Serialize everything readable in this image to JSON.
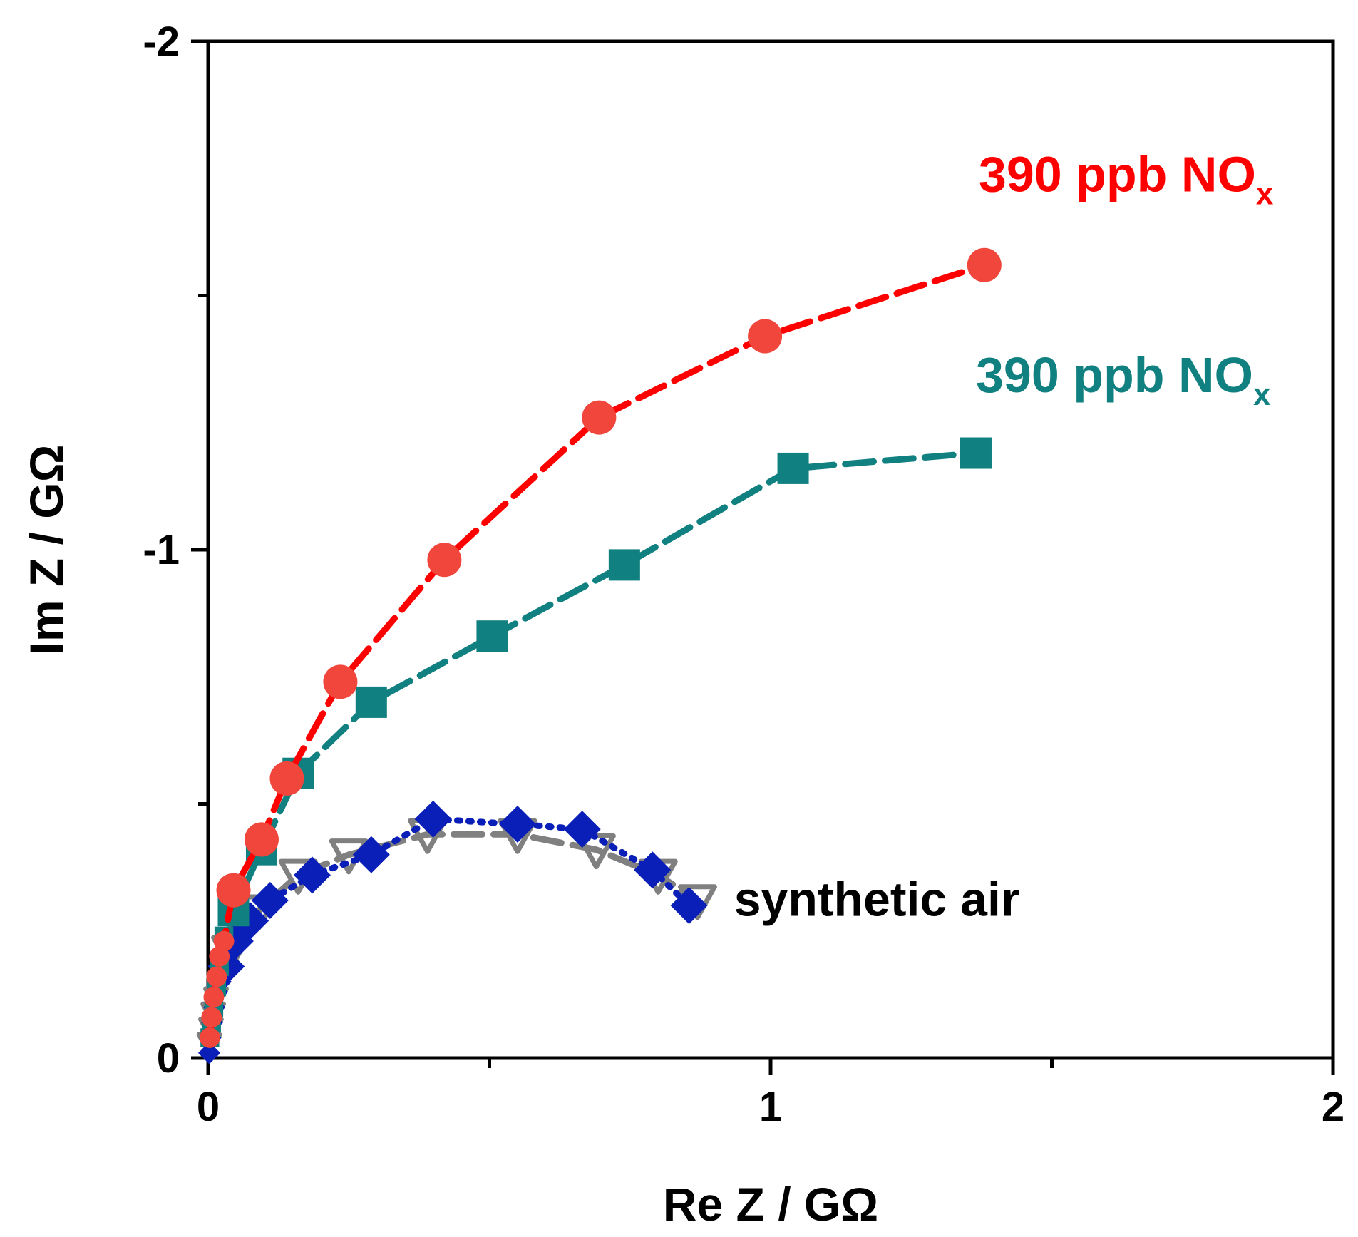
{
  "chart_data": {
    "type": "scatter",
    "title": "",
    "xlabel": "Re Z / GΩ",
    "ylabel": "Im Z / GΩ",
    "xlim": [
      0,
      2
    ],
    "ylim": [
      0,
      -2
    ],
    "xticks": [
      0,
      1,
      2
    ],
    "xtick_labels": [
      "0",
      "1",
      "2"
    ],
    "yticks": [
      0,
      -1,
      -2
    ],
    "ytick_labels": [
      "0",
      "-1",
      "-2"
    ],
    "grid": false,
    "colors": {
      "red": "#f0463c",
      "red_line": "#ff0000",
      "teal": "#118080",
      "grey": "#808080",
      "blue": "#0a1fb8",
      "black": "#000000"
    },
    "series": [
      {
        "name": "390 ppb NOx (red)",
        "marker": "circle",
        "color": "#f0463c",
        "line_color": "#ff0000",
        "line_style": "dash",
        "x": [
          0.003,
          0.006,
          0.01,
          0.015,
          0.02,
          0.028,
          0.045,
          0.095,
          0.14,
          0.235,
          0.42,
          0.695,
          0.99,
          1.38
        ],
        "y": [
          -0.04,
          -0.08,
          -0.12,
          -0.16,
          -0.2,
          -0.23,
          -0.33,
          -0.43,
          -0.55,
          -0.74,
          -0.98,
          -1.26,
          -1.42,
          -1.56
        ]
      },
      {
        "name": "390 ppb NOx (teal)",
        "marker": "square",
        "color": "#118080",
        "line_color": "#118080",
        "line_style": "dash",
        "x": [
          0.003,
          0.006,
          0.01,
          0.015,
          0.02,
          0.028,
          0.045,
          0.095,
          0.16,
          0.29,
          0.505,
          0.74,
          1.04,
          1.365
        ],
        "y": [
          -0.04,
          -0.07,
          -0.1,
          -0.14,
          -0.18,
          -0.24,
          -0.29,
          -0.41,
          -0.56,
          -0.7,
          -0.83,
          -0.97,
          -1.16,
          -1.19
        ]
      },
      {
        "name": "synthetic air (grey)",
        "marker": "triangle-down",
        "color": "#808080",
        "line_color": "#808080",
        "line_style": "dash",
        "x": [
          0.002,
          0.005,
          0.009,
          0.014,
          0.02,
          0.028,
          0.04,
          0.06,
          0.09,
          0.16,
          0.25,
          0.39,
          0.55,
          0.69,
          0.8,
          0.87
        ],
        "y": [
          -0.03,
          -0.06,
          -0.09,
          -0.12,
          -0.15,
          -0.18,
          -0.21,
          -0.25,
          -0.29,
          -0.36,
          -0.4,
          -0.44,
          -0.44,
          -0.41,
          -0.36,
          -0.31
        ]
      },
      {
        "name": "synthetic air (blue)",
        "marker": "diamond",
        "color": "#0a1fb8",
        "line_color": "#0a1fb8",
        "line_style": "dot",
        "x": [
          0.002,
          0.004,
          0.007,
          0.011,
          0.016,
          0.022,
          0.032,
          0.048,
          0.075,
          0.11,
          0.185,
          0.29,
          0.4,
          0.55,
          0.665,
          0.79,
          0.855
        ],
        "y": [
          -0.01,
          -0.04,
          -0.07,
          -0.1,
          -0.13,
          -0.15,
          -0.18,
          -0.23,
          -0.27,
          -0.31,
          -0.36,
          -0.4,
          -0.47,
          -0.46,
          -0.45,
          -0.37,
          -0.3
        ]
      }
    ],
    "annotations": [
      {
        "text_main": "390 ppb NO",
        "text_sub": "x",
        "color": "#ff0000",
        "anchor_x": 1.37,
        "anchor_y": -1.705
      },
      {
        "text_main": "390 ppb NO",
        "text_sub": "x",
        "color": "#118080",
        "anchor_x": 1.365,
        "anchor_y": -1.31
      },
      {
        "text_main": "synthetic air",
        "text_sub": "",
        "color": "#000000",
        "anchor_x": 0.935,
        "anchor_y": -0.28
      }
    ]
  }
}
